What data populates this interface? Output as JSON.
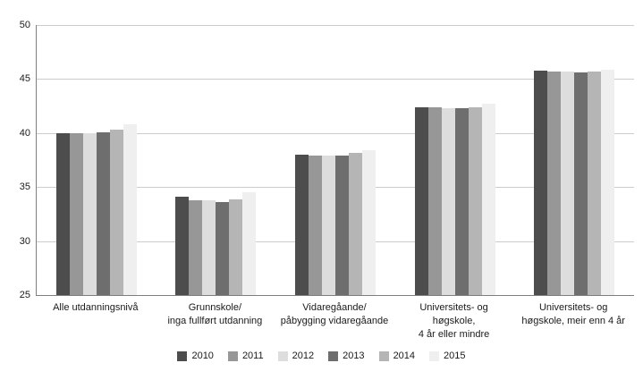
{
  "chart_data": {
    "type": "bar",
    "title": "",
    "xlabel": "",
    "ylabel": "",
    "ylim": [
      25,
      50
    ],
    "yticks": [
      25,
      30,
      35,
      40,
      45,
      50
    ],
    "grid": true,
    "legend_position": "bottom",
    "categories": [
      [
        "Alle utdanningsnivå"
      ],
      [
        "Grunnskole/",
        "inga fullført utdanning"
      ],
      [
        "Vidaregåande/",
        "påbygging vidaregåande"
      ],
      [
        "Universitets- og høgskole,",
        "4 år eller mindre"
      ],
      [
        "Universitets- og",
        "høgskole, meir enn 4 år"
      ]
    ],
    "series": [
      {
        "name": "2010",
        "color": "#4d4d4d",
        "values": [
          40.0,
          34.1,
          38.0,
          42.4,
          45.8
        ]
      },
      {
        "name": "2011",
        "color": "#979797",
        "values": [
          40.0,
          33.8,
          37.9,
          42.4,
          45.7
        ]
      },
      {
        "name": "2012",
        "color": "#dddddd",
        "values": [
          40.0,
          33.8,
          37.9,
          42.3,
          45.7
        ]
      },
      {
        "name": "2013",
        "color": "#6e6e6e",
        "values": [
          40.1,
          33.6,
          37.9,
          42.3,
          45.6
        ]
      },
      {
        "name": "2014",
        "color": "#b5b5b5",
        "values": [
          40.3,
          33.9,
          38.2,
          42.4,
          45.7
        ]
      },
      {
        "name": "2015",
        "color": "#efefef",
        "values": [
          40.8,
          34.5,
          38.4,
          42.7,
          45.9
        ]
      }
    ]
  }
}
